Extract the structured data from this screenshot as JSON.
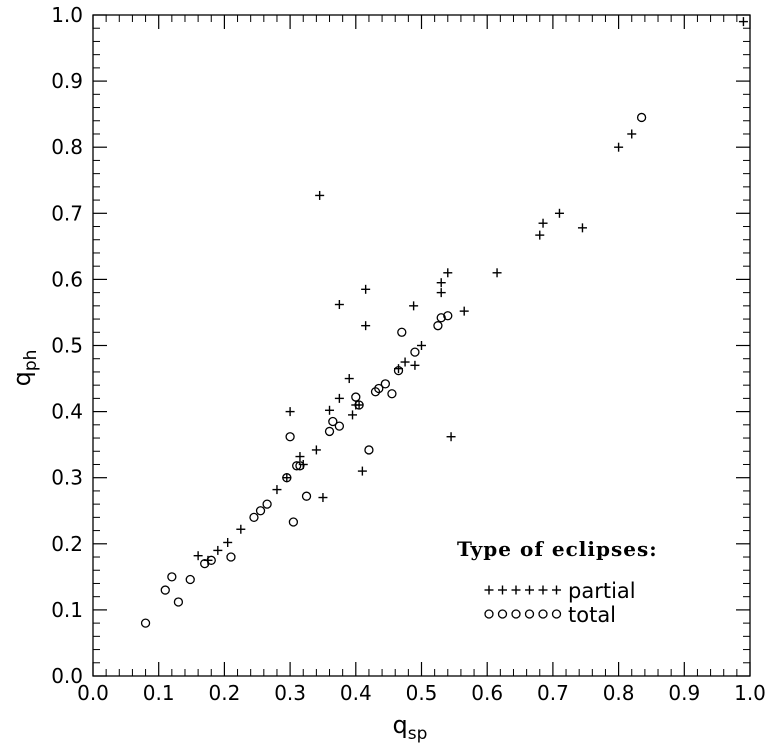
{
  "chart_data": {
    "type": "scatter",
    "title": "",
    "xlabel": {
      "main": "q",
      "sub": "sp"
    },
    "ylabel": {
      "main": "q",
      "sub": "ph"
    },
    "xlim": [
      0.0,
      1.0
    ],
    "ylim": [
      0.0,
      1.0
    ],
    "x_ticks": [
      "0.0",
      "0.1",
      "0.2",
      "0.3",
      "0.4",
      "0.5",
      "0.6",
      "0.7",
      "0.8",
      "0.9",
      "1.0"
    ],
    "y_ticks": [
      "0.0",
      "0.1",
      "0.2",
      "0.3",
      "0.4",
      "0.5",
      "0.6",
      "0.7",
      "0.8",
      "0.9",
      "1.0"
    ],
    "grid": false,
    "legend": {
      "title": "Type of eclipses:",
      "position": "bottom-right",
      "entries": [
        {
          "label": "partial",
          "marker": "plus"
        },
        {
          "label": "total",
          "marker": "circle"
        }
      ]
    },
    "series": [
      {
        "name": "partial",
        "marker": "plus",
        "points": [
          [
            0.16,
            0.182
          ],
          [
            0.175,
            0.175
          ],
          [
            0.19,
            0.19
          ],
          [
            0.205,
            0.202
          ],
          [
            0.225,
            0.222
          ],
          [
            0.28,
            0.282
          ],
          [
            0.295,
            0.3
          ],
          [
            0.3,
            0.4
          ],
          [
            0.315,
            0.332
          ],
          [
            0.32,
            0.32
          ],
          [
            0.345,
            0.727
          ],
          [
            0.35,
            0.27
          ],
          [
            0.34,
            0.342
          ],
          [
            0.36,
            0.402
          ],
          [
            0.375,
            0.42
          ],
          [
            0.375,
            0.562
          ],
          [
            0.39,
            0.45
          ],
          [
            0.395,
            0.395
          ],
          [
            0.4,
            0.41
          ],
          [
            0.405,
            0.41
          ],
          [
            0.41,
            0.31
          ],
          [
            0.415,
            0.585
          ],
          [
            0.415,
            0.53
          ],
          [
            0.465,
            0.465
          ],
          [
            0.475,
            0.475
          ],
          [
            0.488,
            0.56
          ],
          [
            0.49,
            0.47
          ],
          [
            0.5,
            0.5
          ],
          [
            0.53,
            0.58
          ],
          [
            0.53,
            0.595
          ],
          [
            0.54,
            0.61
          ],
          [
            0.545,
            0.362
          ],
          [
            0.565,
            0.552
          ],
          [
            0.615,
            0.61
          ],
          [
            0.68,
            0.667
          ],
          [
            0.685,
            0.685
          ],
          [
            0.71,
            0.7
          ],
          [
            0.745,
            0.678
          ],
          [
            0.8,
            0.8
          ],
          [
            0.82,
            0.82
          ],
          [
            0.99,
            0.99
          ]
        ]
      },
      {
        "name": "total",
        "marker": "circle",
        "points": [
          [
            0.08,
            0.08
          ],
          [
            0.11,
            0.13
          ],
          [
            0.12,
            0.15
          ],
          [
            0.13,
            0.112
          ],
          [
            0.148,
            0.146
          ],
          [
            0.17,
            0.17
          ],
          [
            0.18,
            0.175
          ],
          [
            0.21,
            0.18
          ],
          [
            0.245,
            0.24
          ],
          [
            0.255,
            0.25
          ],
          [
            0.265,
            0.26
          ],
          [
            0.295,
            0.3
          ],
          [
            0.3,
            0.362
          ],
          [
            0.305,
            0.233
          ],
          [
            0.31,
            0.318
          ],
          [
            0.315,
            0.318
          ],
          [
            0.325,
            0.272
          ],
          [
            0.36,
            0.37
          ],
          [
            0.365,
            0.385
          ],
          [
            0.375,
            0.378
          ],
          [
            0.4,
            0.422
          ],
          [
            0.405,
            0.41
          ],
          [
            0.42,
            0.342
          ],
          [
            0.43,
            0.43
          ],
          [
            0.435,
            0.435
          ],
          [
            0.445,
            0.442
          ],
          [
            0.455,
            0.427
          ],
          [
            0.465,
            0.462
          ],
          [
            0.47,
            0.52
          ],
          [
            0.49,
            0.49
          ],
          [
            0.525,
            0.53
          ],
          [
            0.53,
            0.542
          ],
          [
            0.54,
            0.545
          ],
          [
            0.835,
            0.845
          ]
        ]
      }
    ]
  }
}
